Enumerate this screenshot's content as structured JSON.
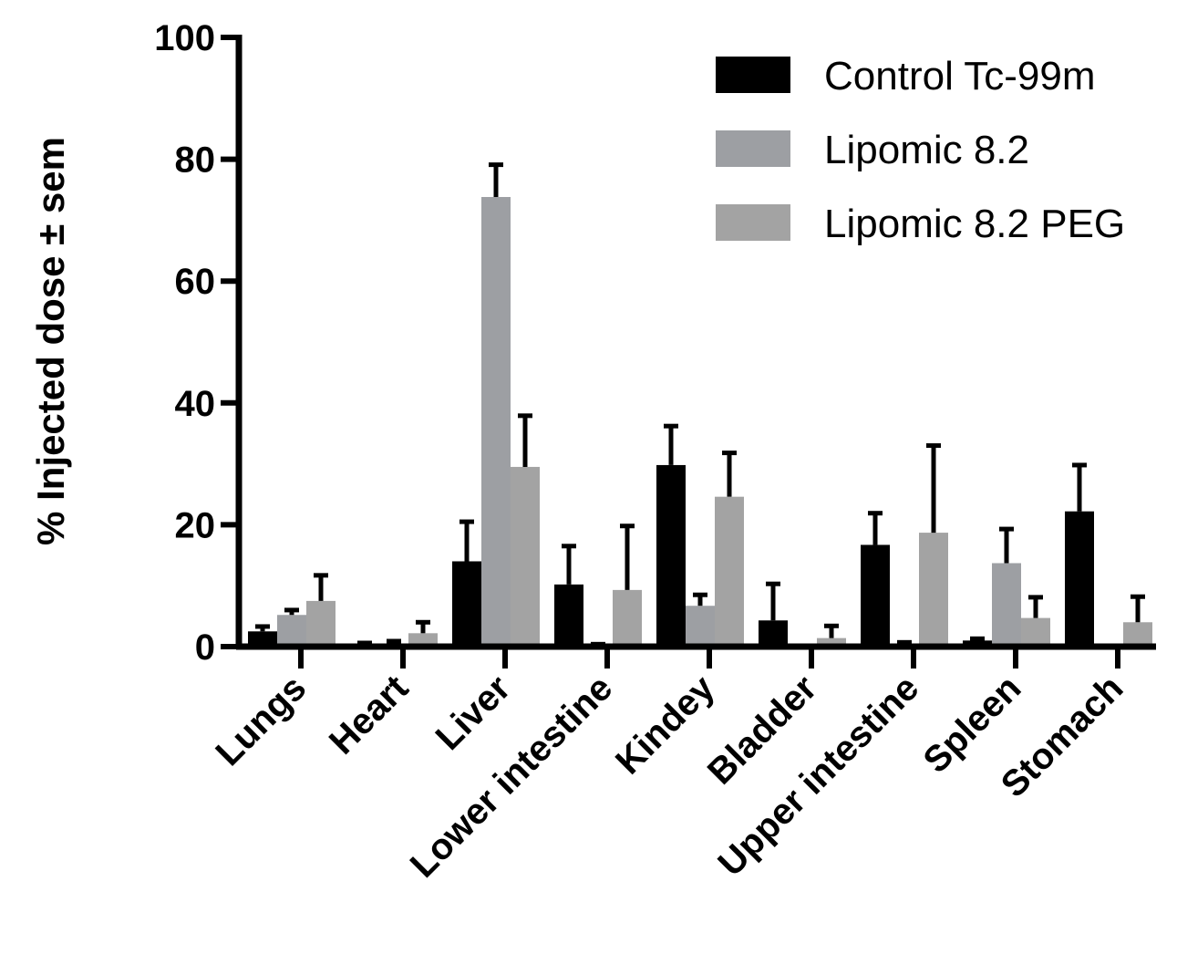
{
  "chart_data": {
    "type": "bar",
    "title": "",
    "xlabel": "",
    "ylabel": "% Injected dose ± sem",
    "ylim": [
      0,
      100
    ],
    "yticks": [
      0,
      20,
      40,
      60,
      80,
      100
    ],
    "categories": [
      "Lungs",
      "Heart",
      "Liver",
      "Lower intestine",
      "Kindey",
      "Bladder",
      "Upper intestine",
      "Spleen",
      "Stomach"
    ],
    "series": [
      {
        "name": "Control Tc-99m",
        "color": "#000000",
        "values": [
          2.5,
          0.4,
          14,
          10.2,
          29.8,
          4.3,
          16.7,
          1.0,
          22.2
        ],
        "errors": [
          0.8,
          0.2,
          6.5,
          6.3,
          6.4,
          6.0,
          5.2,
          0.3,
          7.6
        ]
      },
      {
        "name": "Lipomic 8.2",
        "color": "#9d9fa3",
        "values": [
          5.2,
          0.5,
          73.8,
          0.3,
          6.7,
          0.0,
          0.5,
          13.7,
          0.0
        ],
        "errors": [
          0.8,
          0.4,
          5.3,
          0.1,
          1.8,
          0.0,
          0.2,
          5.6,
          0.0
        ]
      },
      {
        "name": "Lipomic 8.2 PEG",
        "color": "#a3a3a3",
        "values": [
          7.5,
          2.2,
          29.5,
          9.3,
          24.6,
          1.4,
          18.7,
          4.7,
          4.0
        ],
        "errors": [
          4.2,
          1.8,
          8.4,
          10.5,
          7.2,
          2.0,
          14.3,
          3.4,
          4.2
        ]
      }
    ],
    "legend_position": "top-right"
  }
}
